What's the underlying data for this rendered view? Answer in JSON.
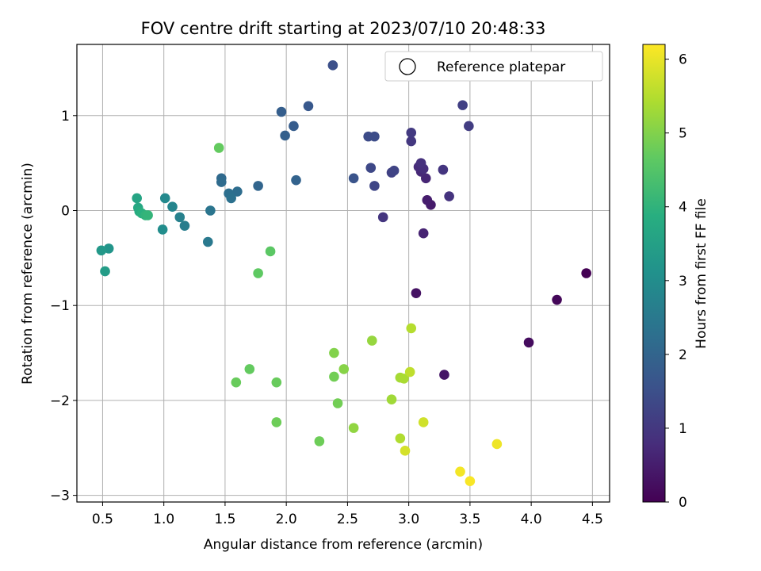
{
  "chart_data": {
    "type": "scatter",
    "title": "FOV centre drift starting at 2023/07/10 20:48:33",
    "xlabel": "Angular distance from reference (arcmin)",
    "ylabel": "Rotation from reference (arcmin)",
    "xlim": [
      0.29,
      4.64
    ],
    "ylim": [
      -3.07,
      1.75
    ],
    "xticks": [
      0.5,
      1.0,
      1.5,
      2.0,
      2.5,
      3.0,
      3.5,
      4.0,
      4.5
    ],
    "xtick_labels": [
      "0.5",
      "1.0",
      "1.5",
      "2.0",
      "2.5",
      "3.0",
      "3.5",
      "4.0",
      "4.5"
    ],
    "yticks": [
      -3,
      -2,
      -1,
      0,
      1
    ],
    "ytick_labels": [
      "−3",
      "−2",
      "−1",
      "0",
      "1"
    ],
    "grid": true,
    "legend": {
      "position": "upper right",
      "entries": [
        "Reference platepar"
      ]
    },
    "colorbar": {
      "label": "Hours from first FF file",
      "range": [
        0,
        6.2
      ],
      "ticks": [
        0,
        1,
        2,
        3,
        4,
        5,
        6
      ],
      "tick_labels": [
        "0",
        "1",
        "2",
        "3",
        "4",
        "5",
        "6"
      ],
      "colormap": "viridis"
    },
    "points": [
      {
        "x": 4.45,
        "y": -0.66,
        "h": 0.0
      },
      {
        "x": 4.21,
        "y": -0.94,
        "h": 0.1
      },
      {
        "x": 3.98,
        "y": -1.39,
        "h": 0.2
      },
      {
        "x": 3.06,
        "y": -0.87,
        "h": 0.3
      },
      {
        "x": 3.29,
        "y": -1.73,
        "h": 0.35
      },
      {
        "x": 3.18,
        "y": 0.06,
        "h": 0.45
      },
      {
        "x": 3.15,
        "y": 0.11,
        "h": 0.5
      },
      {
        "x": 3.12,
        "y": -0.24,
        "h": 0.6
      },
      {
        "x": 3.14,
        "y": 0.34,
        "h": 0.65
      },
      {
        "x": 3.1,
        "y": 0.41,
        "h": 0.7
      },
      {
        "x": 3.08,
        "y": 0.46,
        "h": 0.75
      },
      {
        "x": 3.12,
        "y": 0.44,
        "h": 0.8
      },
      {
        "x": 3.1,
        "y": 0.5,
        "h": 0.85
      },
      {
        "x": 3.33,
        "y": 0.15,
        "h": 0.9
      },
      {
        "x": 3.28,
        "y": 0.43,
        "h": 0.95
      },
      {
        "x": 2.79,
        "y": -0.07,
        "h": 0.95
      },
      {
        "x": 3.02,
        "y": 0.73,
        "h": 1.0
      },
      {
        "x": 3.02,
        "y": 0.82,
        "h": 1.05
      },
      {
        "x": 3.49,
        "y": 0.89,
        "h": 1.1
      },
      {
        "x": 3.44,
        "y": 1.11,
        "h": 1.15
      },
      {
        "x": 2.86,
        "y": 0.4,
        "h": 1.2
      },
      {
        "x": 2.88,
        "y": 0.42,
        "h": 1.25
      },
      {
        "x": 2.72,
        "y": 0.26,
        "h": 1.3
      },
      {
        "x": 2.69,
        "y": 0.45,
        "h": 1.35
      },
      {
        "x": 2.67,
        "y": 0.78,
        "h": 1.4
      },
      {
        "x": 2.72,
        "y": 0.78,
        "h": 1.45
      },
      {
        "x": 2.38,
        "y": 1.53,
        "h": 1.5
      },
      {
        "x": 2.55,
        "y": 0.34,
        "h": 1.6
      },
      {
        "x": 2.18,
        "y": 1.1,
        "h": 1.7
      },
      {
        "x": 2.06,
        "y": 0.89,
        "h": 1.8
      },
      {
        "x": 1.96,
        "y": 1.04,
        "h": 1.85
      },
      {
        "x": 1.99,
        "y": 0.79,
        "h": 1.9
      },
      {
        "x": 2.08,
        "y": 0.32,
        "h": 1.95
      },
      {
        "x": 1.77,
        "y": 0.26,
        "h": 2.0
      },
      {
        "x": 1.47,
        "y": 0.34,
        "h": 2.1
      },
      {
        "x": 1.47,
        "y": 0.3,
        "h": 2.15
      },
      {
        "x": 1.6,
        "y": 0.2,
        "h": 2.2
      },
      {
        "x": 1.53,
        "y": 0.18,
        "h": 2.25
      },
      {
        "x": 1.55,
        "y": 0.13,
        "h": 2.3
      },
      {
        "x": 1.38,
        "y": 0.0,
        "h": 2.4
      },
      {
        "x": 1.36,
        "y": -0.33,
        "h": 2.5
      },
      {
        "x": 1.17,
        "y": -0.16,
        "h": 2.6
      },
      {
        "x": 1.13,
        "y": -0.07,
        "h": 2.7
      },
      {
        "x": 1.07,
        "y": 0.04,
        "h": 2.8
      },
      {
        "x": 1.01,
        "y": 0.13,
        "h": 2.9
      },
      {
        "x": 0.99,
        "y": -0.2,
        "h": 3.0
      },
      {
        "x": 0.55,
        "y": -0.4,
        "h": 3.2
      },
      {
        "x": 0.49,
        "y": -0.42,
        "h": 3.3
      },
      {
        "x": 0.52,
        "y": -0.64,
        "h": 3.4
      },
      {
        "x": 0.78,
        "y": 0.13,
        "h": 3.6
      },
      {
        "x": 0.79,
        "y": 0.03,
        "h": 3.7
      },
      {
        "x": 0.8,
        "y": -0.01,
        "h": 3.8
      },
      {
        "x": 0.82,
        "y": -0.03,
        "h": 3.9
      },
      {
        "x": 0.85,
        "y": -0.05,
        "h": 4.0
      },
      {
        "x": 0.87,
        "y": -0.05,
        "h": 4.05
      },
      {
        "x": 1.87,
        "y": -0.43,
        "h": 4.6
      },
      {
        "x": 1.77,
        "y": -0.66,
        "h": 4.65
      },
      {
        "x": 1.45,
        "y": 0.66,
        "h": 4.7
      },
      {
        "x": 1.7,
        "y": -1.67,
        "h": 4.7
      },
      {
        "x": 1.59,
        "y": -1.81,
        "h": 4.75
      },
      {
        "x": 1.92,
        "y": -1.81,
        "h": 4.75
      },
      {
        "x": 1.92,
        "y": -2.23,
        "h": 4.8
      },
      {
        "x": 2.27,
        "y": -2.43,
        "h": 4.8
      },
      {
        "x": 2.39,
        "y": -1.75,
        "h": 4.85
      },
      {
        "x": 2.42,
        "y": -2.03,
        "h": 4.85
      },
      {
        "x": 2.39,
        "y": -1.5,
        "h": 5.0
      },
      {
        "x": 2.47,
        "y": -1.67,
        "h": 5.05
      },
      {
        "x": 2.55,
        "y": -2.29,
        "h": 5.15
      },
      {
        "x": 2.7,
        "y": -1.37,
        "h": 5.2
      },
      {
        "x": 2.86,
        "y": -1.99,
        "h": 5.3
      },
      {
        "x": 2.93,
        "y": -1.76,
        "h": 5.35
      },
      {
        "x": 2.96,
        "y": -1.77,
        "h": 5.4
      },
      {
        "x": 2.93,
        "y": -2.4,
        "h": 5.45
      },
      {
        "x": 3.02,
        "y": -1.24,
        "h": 5.5
      },
      {
        "x": 3.01,
        "y": -1.7,
        "h": 5.6
      },
      {
        "x": 3.12,
        "y": -2.23,
        "h": 5.75
      },
      {
        "x": 2.97,
        "y": -2.53,
        "h": 5.8
      },
      {
        "x": 3.72,
        "y": -2.46,
        "h": 6.05
      },
      {
        "x": 3.42,
        "y": -2.75,
        "h": 6.1
      },
      {
        "x": 3.5,
        "y": -2.85,
        "h": 6.15
      }
    ]
  }
}
